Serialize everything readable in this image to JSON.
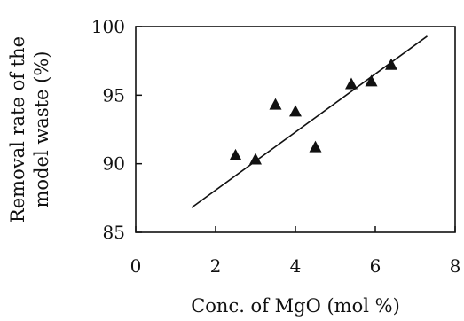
{
  "chart_data": {
    "type": "scatter",
    "title": "",
    "xlabel": "Conc. of MgO (mol %)",
    "ylabel_lines": [
      "Removal rate of the",
      "model waste (%)"
    ],
    "xlim": [
      0,
      8
    ],
    "ylim": [
      85,
      100
    ],
    "x_ticks": [
      0,
      2,
      4,
      6,
      8
    ],
    "y_ticks": [
      85,
      90,
      95,
      100
    ],
    "grid": false,
    "marker": "triangle",
    "series": [
      {
        "points": [
          {
            "x": 2.5,
            "y": 90.6
          },
          {
            "x": 3.0,
            "y": 90.3
          },
          {
            "x": 3.5,
            "y": 94.3
          },
          {
            "x": 4.0,
            "y": 93.8
          },
          {
            "x": 4.5,
            "y": 91.2
          },
          {
            "x": 5.4,
            "y": 95.8
          },
          {
            "x": 5.9,
            "y": 96.0
          },
          {
            "x": 6.4,
            "y": 97.2
          }
        ]
      }
    ],
    "trendline": {
      "x1": 1.4,
      "y1": 86.8,
      "x2": 7.3,
      "y2": 99.3
    }
  }
}
